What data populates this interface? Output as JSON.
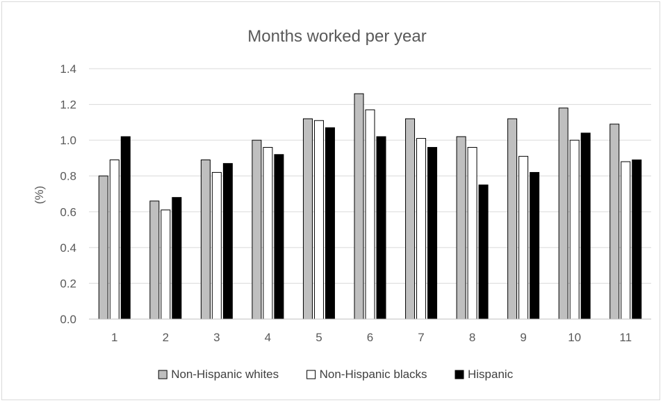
{
  "chart_data": {
    "type": "bar",
    "title": "Months worked per year",
    "xlabel": "",
    "ylabel": "(%)",
    "ylim": [
      0,
      1.4
    ],
    "yticks": [
      "0.0",
      "0.2",
      "0.4",
      "0.6",
      "0.8",
      "1.0",
      "1.2",
      "1.4"
    ],
    "grid": true,
    "legend_position": "bottom",
    "categories": [
      "1",
      "2",
      "3",
      "4",
      "5",
      "6",
      "7",
      "8",
      "9",
      "10",
      "11"
    ],
    "series": [
      {
        "name": "Non-Hispanic whites",
        "color": "#bfbfbf",
        "values": [
          0.8,
          0.66,
          0.89,
          1.0,
          1.12,
          1.26,
          1.12,
          1.02,
          1.12,
          1.18,
          1.09
        ]
      },
      {
        "name": "Non-Hispanic blacks",
        "color": "#ffffff",
        "values": [
          0.89,
          0.61,
          0.82,
          0.96,
          1.11,
          1.17,
          1.01,
          0.96,
          0.91,
          1.0,
          0.88
        ]
      },
      {
        "name": "Hispanic",
        "color": "#000000",
        "values": [
          1.02,
          0.68,
          0.87,
          0.92,
          1.07,
          1.02,
          0.96,
          0.75,
          0.82,
          1.04,
          0.89
        ]
      }
    ]
  }
}
